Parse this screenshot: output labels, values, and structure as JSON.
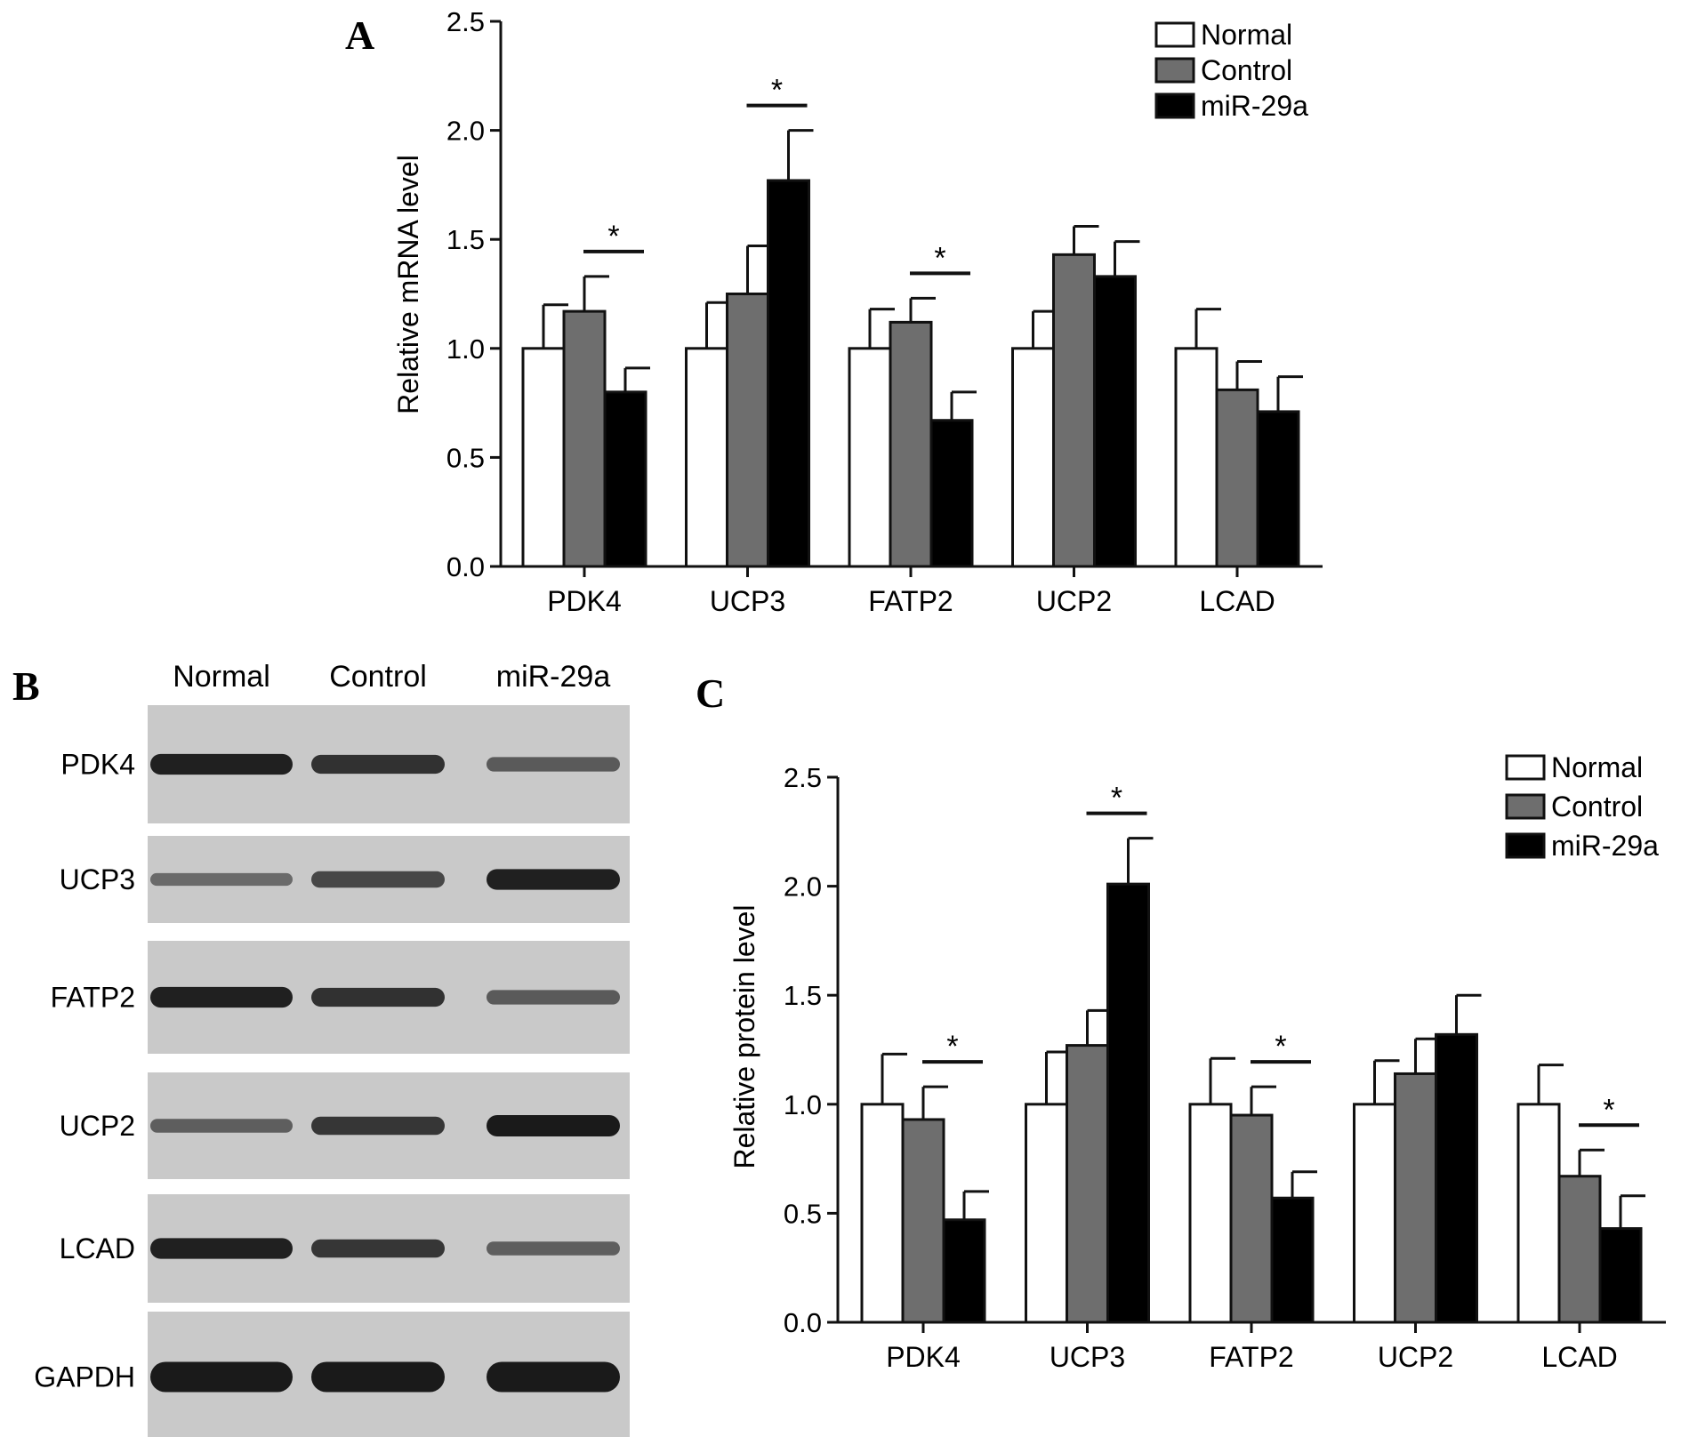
{
  "figure": {
    "panel_labels": [
      "A",
      "B",
      "C"
    ]
  },
  "colors": {
    "normal": "#ffffff",
    "control": "#6e6e6e",
    "mir29a": "#000000",
    "blot_bg": "#c9c9c9",
    "band": "#1a1a1a"
  },
  "chart_data": [
    {
      "panel": "A",
      "type": "bar",
      "ylabel": "Relative mRNA level",
      "xlabel": "",
      "ylim": [
        0,
        2.5
      ],
      "yticks": [
        "0.0",
        "0.5",
        "1.0",
        "1.5",
        "2.0",
        "2.5"
      ],
      "categories": [
        "PDK4",
        "UCP3",
        "FATP2",
        "UCP2",
        "LCAD"
      ],
      "legend": {
        "position": "top-right",
        "entries": [
          "Normal",
          "Control",
          "miR-29a"
        ]
      },
      "grid": false,
      "series": [
        {
          "name": "Normal",
          "values": [
            1.0,
            1.0,
            1.0,
            1.0,
            1.0
          ],
          "errors": [
            0.2,
            0.21,
            0.18,
            0.17,
            0.18
          ]
        },
        {
          "name": "Control",
          "values": [
            1.17,
            1.25,
            1.12,
            1.43,
            0.81
          ],
          "errors": [
            0.16,
            0.22,
            0.11,
            0.13,
            0.13
          ]
        },
        {
          "name": "miR-29a",
          "values": [
            0.8,
            1.77,
            0.67,
            1.33,
            0.71
          ],
          "errors": [
            0.11,
            0.23,
            0.13,
            0.16,
            0.16
          ]
        }
      ],
      "significance": [
        {
          "category": "PDK4",
          "label": "*"
        },
        {
          "category": "UCP3",
          "label": "*"
        },
        {
          "category": "FATP2",
          "label": "*"
        }
      ]
    },
    {
      "panel": "C",
      "type": "bar",
      "ylabel": "Relative protein level",
      "xlabel": "",
      "ylim": [
        0,
        2.5
      ],
      "yticks": [
        "0.0",
        "0.5",
        "1.0",
        "1.5",
        "2.0",
        "2.5"
      ],
      "categories": [
        "PDK4",
        "UCP3",
        "FATP2",
        "UCP2",
        "LCAD"
      ],
      "legend": {
        "position": "top-right",
        "entries": [
          "Normal",
          "Control",
          "miR-29a"
        ]
      },
      "grid": false,
      "series": [
        {
          "name": "Normal",
          "values": [
            1.0,
            1.0,
            1.0,
            1.0,
            1.0
          ],
          "errors": [
            0.23,
            0.24,
            0.21,
            0.2,
            0.18
          ]
        },
        {
          "name": "Control",
          "values": [
            0.93,
            1.27,
            0.95,
            1.14,
            0.67
          ],
          "errors": [
            0.15,
            0.16,
            0.13,
            0.16,
            0.12
          ]
        },
        {
          "name": "miR-29a",
          "values": [
            0.47,
            2.01,
            0.57,
            1.32,
            0.43
          ],
          "errors": [
            0.13,
            0.21,
            0.12,
            0.18,
            0.15
          ]
        }
      ],
      "significance": [
        {
          "category": "PDK4",
          "label": "*"
        },
        {
          "category": "UCP3",
          "label": "*"
        },
        {
          "category": "FATP2",
          "label": "*"
        },
        {
          "category": "LCAD",
          "label": "*"
        }
      ]
    }
  ],
  "western_blot": {
    "panel": "B",
    "lanes": [
      "Normal",
      "Control",
      "miR-29a"
    ],
    "rows": [
      {
        "protein": "PDK4",
        "intensity": [
          0.95,
          0.8,
          0.45
        ]
      },
      {
        "protein": "UCP3",
        "intensity": [
          0.3,
          0.6,
          0.95
        ]
      },
      {
        "protein": "FATP2",
        "intensity": [
          0.95,
          0.8,
          0.45
        ]
      },
      {
        "protein": "UCP2",
        "intensity": [
          0.4,
          0.75,
          1.0
        ]
      },
      {
        "protein": "LCAD",
        "intensity": [
          0.95,
          0.75,
          0.4
        ]
      },
      {
        "protein": "GAPDH",
        "intensity": [
          1.0,
          1.0,
          1.0
        ]
      }
    ]
  }
}
